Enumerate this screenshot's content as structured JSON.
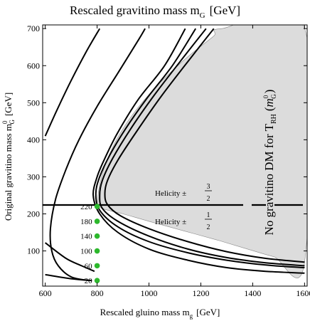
{
  "chart_data": {
    "type": "line",
    "title": "Rescaled gravitino mass m",
    "title_sub": "G",
    "title_unit": "[GeV]",
    "xlabel": "Rescaled gluino mass m",
    "xlabel_sub": "g",
    "xlabel_unit": "[GeV]",
    "ylabel": "Original gravitino mass m",
    "ylabel_sub": "G",
    "ylabel_sup": "0",
    "ylabel_unit": "[GeV]",
    "xlim": [
      590,
      1610
    ],
    "ylim": [
      5,
      710
    ],
    "xticks": [
      600,
      800,
      1000,
      1200,
      1400,
      1600
    ],
    "yticks": [
      100,
      200,
      300,
      400,
      500,
      600,
      700
    ],
    "region_label": "No gravitino DM for T",
    "region_label_sub": "RH",
    "region_label_arg": "m",
    "region_label_arg_sup": "0",
    "region_label_arg_sub": "G",
    "helicity_label": "Helicity ±",
    "helicity_3_2": {
      "num": "3",
      "den": "2"
    },
    "helicity_1_2": {
      "num": "1",
      "den": "2"
    },
    "helicity_line_y": 224,
    "excluded_region": [
      [
        800,
        230
      ],
      [
        810,
        280
      ],
      [
        830,
        330
      ],
      [
        860,
        380
      ],
      [
        900,
        430
      ],
      [
        950,
        480
      ],
      [
        1010,
        530
      ],
      [
        1080,
        580
      ],
      [
        1160,
        630
      ],
      [
        1250,
        680
      ],
      [
        1280,
        700
      ],
      [
        1600,
        700
      ],
      [
        1600,
        70
      ],
      [
        1480,
        85
      ],
      [
        1380,
        105
      ],
      [
        1260,
        130
      ],
      [
        1130,
        155
      ],
      [
        1000,
        180
      ],
      [
        900,
        200
      ],
      [
        830,
        212
      ],
      [
        800,
        220
      ]
    ],
    "series": [
      {
        "points": [
          [
            600,
            410
          ],
          [
            645,
            480
          ],
          [
            700,
            560
          ],
          [
            760,
            640
          ],
          [
            810,
            700
          ]
        ]
      },
      {
        "points": [
          [
            770,
            20
          ],
          [
            700,
            30
          ],
          [
            650,
            60
          ],
          [
            625,
            100
          ],
          [
            620,
            160
          ],
          [
            640,
            240
          ],
          [
            680,
            320
          ],
          [
            730,
            400
          ],
          [
            800,
            490
          ],
          [
            880,
            580
          ],
          [
            960,
            670
          ],
          [
            985,
            700
          ]
        ]
      },
      {
        "points": [
          [
            1600,
            40
          ],
          [
            1450,
            45
          ],
          [
            1300,
            55
          ],
          [
            1150,
            75
          ],
          [
            1000,
            105
          ],
          [
            880,
            150
          ],
          [
            810,
            200
          ],
          [
            785,
            250
          ],
          [
            800,
            300
          ],
          [
            830,
            350
          ],
          [
            880,
            420
          ],
          [
            960,
            510
          ],
          [
            1060,
            600
          ],
          [
            1140,
            700
          ]
        ]
      },
      {
        "points": [
          [
            1600,
            55
          ],
          [
            1450,
            62
          ],
          [
            1300,
            75
          ],
          [
            1150,
            95
          ],
          [
            1000,
            125
          ],
          [
            880,
            165
          ],
          [
            810,
            210
          ],
          [
            795,
            255
          ],
          [
            810,
            300
          ],
          [
            850,
            360
          ],
          [
            910,
            430
          ],
          [
            990,
            510
          ],
          [
            1090,
            600
          ],
          [
            1180,
            700
          ]
        ]
      },
      {
        "points": [
          [
            1600,
            60
          ],
          [
            1450,
            68
          ],
          [
            1300,
            82
          ],
          [
            1150,
            105
          ],
          [
            1000,
            140
          ],
          [
            880,
            180
          ],
          [
            820,
            215
          ],
          [
            810,
            250
          ],
          [
            820,
            290
          ],
          [
            860,
            350
          ],
          [
            930,
            430
          ],
          [
            1020,
            520
          ],
          [
            1130,
            620
          ],
          [
            1220,
            700
          ]
        ]
      },
      {
        "points": [
          [
            1600,
            70
          ],
          [
            1450,
            80
          ],
          [
            1300,
            98
          ],
          [
            1150,
            125
          ],
          [
            1000,
            160
          ],
          [
            890,
            195
          ],
          [
            840,
            225
          ],
          [
            830,
            255
          ],
          [
            840,
            290
          ],
          [
            880,
            345
          ],
          [
            950,
            420
          ],
          [
            1050,
            520
          ],
          [
            1160,
            620
          ],
          [
            1250,
            700
          ]
        ]
      },
      {
        "points": [
          [
            600,
            122
          ],
          [
            680,
            80
          ],
          [
            740,
            60
          ],
          [
            790,
            45
          ]
        ]
      },
      {
        "points": [
          [
            600,
            36
          ],
          [
            700,
            25
          ],
          [
            780,
            20
          ]
        ]
      }
    ],
    "markers": [
      {
        "x": 800,
        "y": 220,
        "label": "220"
      },
      {
        "x": 800,
        "y": 180,
        "label": "180"
      },
      {
        "x": 800,
        "y": 140,
        "label": "140"
      },
      {
        "x": 800,
        "y": 100,
        "label": "100"
      },
      {
        "x": 800,
        "y": 60,
        "label": "60"
      },
      {
        "x": 800,
        "y": 20,
        "label": "20"
      }
    ],
    "colors": {
      "marker": "#2db82d",
      "region": "#dcdcdc",
      "line": "#000000"
    }
  }
}
